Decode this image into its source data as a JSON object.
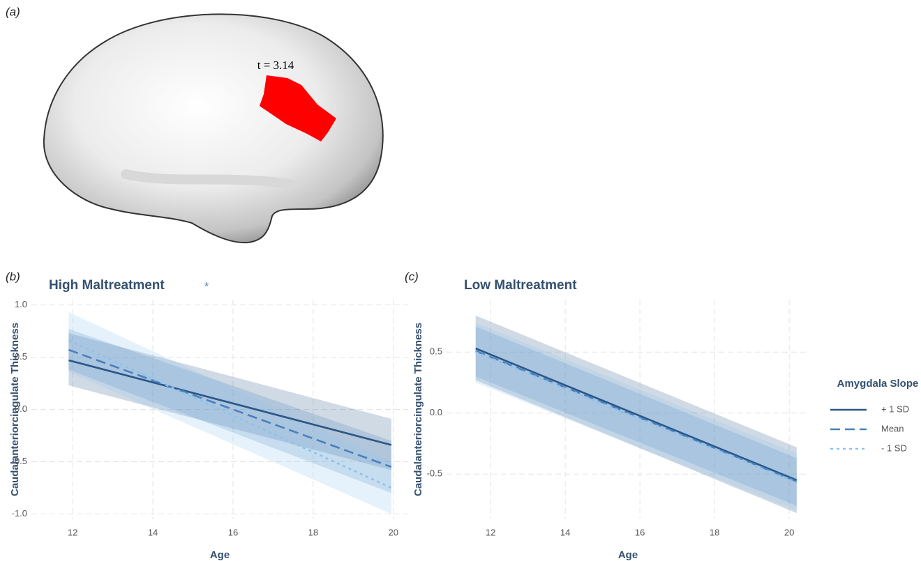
{
  "panel_a": {
    "label": "(a)",
    "annotation": "t = 3.14"
  },
  "chart_data": [
    {
      "type": "line",
      "panel": "(b)",
      "title": "High Maltreatment",
      "annotation": "*",
      "x_label": "Age",
      "y_label": "Caudalanteriorcingulate Thickness",
      "xlim": [
        10.97,
        20.37
      ],
      "xticks": [
        12,
        14,
        16,
        18,
        20
      ],
      "ylim": [
        -1.05,
        1.05
      ],
      "yticks": [
        {
          "value": 1,
          "label": "1.0"
        },
        0.5,
        {
          "value": 0,
          "label": "0.0"
        },
        -0.5,
        {
          "value": -1,
          "label": "-1.0"
        }
      ],
      "grid": true,
      "series": [
        {
          "name": "+ 1 SD",
          "color": "#2b5687",
          "dash": "solid",
          "x": [
            11.9,
            19.95
          ],
          "values": [
            0.47,
            -0.34
          ],
          "lower": [
            0.23,
            -0.58
          ],
          "upper": [
            0.73,
            -0.09
          ]
        },
        {
          "name": "Mean",
          "color": "#4a80bb",
          "dash": "dashed",
          "x": [
            11.9,
            19.95
          ],
          "values": [
            0.57,
            -0.55
          ],
          "lower": [
            0.38,
            -0.8
          ],
          "upper": [
            0.77,
            -0.3
          ]
        },
        {
          "name": "- 1 SD",
          "color": "#8cc2ec",
          "dash": "dotted",
          "x": [
            11.9,
            19.95
          ],
          "values": [
            0.66,
            -0.75
          ],
          "lower": [
            0.36,
            -1.0
          ],
          "upper": [
            0.93,
            -0.5
          ]
        }
      ]
    },
    {
      "type": "line",
      "panel": "(c)",
      "title": "Low Maltreatment",
      "x_label": "Age",
      "y_label": "Caudalanteriorcingulate Thickness",
      "xlim": [
        10.82,
        20.54
      ],
      "xticks": [
        12,
        14,
        16,
        18,
        20
      ],
      "ylim": [
        -0.87,
        0.93
      ],
      "yticks": [
        0.5,
        {
          "value": 0,
          "label": "0.0"
        },
        -0.5
      ],
      "grid": true,
      "legend_title": "Amygdala Slope",
      "series": [
        {
          "name": "+ 1 SD",
          "color": "#2b5687",
          "dash": "solid",
          "x": [
            11.6,
            20.2
          ],
          "values": [
            0.53,
            -0.55
          ],
          "lower": [
            0.27,
            -0.82
          ],
          "upper": [
            0.8,
            -0.28
          ]
        },
        {
          "name": "Mean",
          "color": "#4a80bb",
          "dash": "dashed",
          "x": [
            11.6,
            20.2
          ],
          "values": [
            0.51,
            -0.56
          ],
          "lower": [
            0.3,
            -0.76
          ],
          "upper": [
            0.71,
            -0.37
          ]
        },
        {
          "name": "- 1 SD",
          "color": "#8cc2ec",
          "dash": "dotted",
          "x": [
            11.6,
            20.2
          ],
          "values": [
            0.5,
            -0.57
          ],
          "lower": [
            0.25,
            -0.8
          ],
          "upper": [
            0.74,
            -0.33
          ]
        }
      ]
    }
  ]
}
